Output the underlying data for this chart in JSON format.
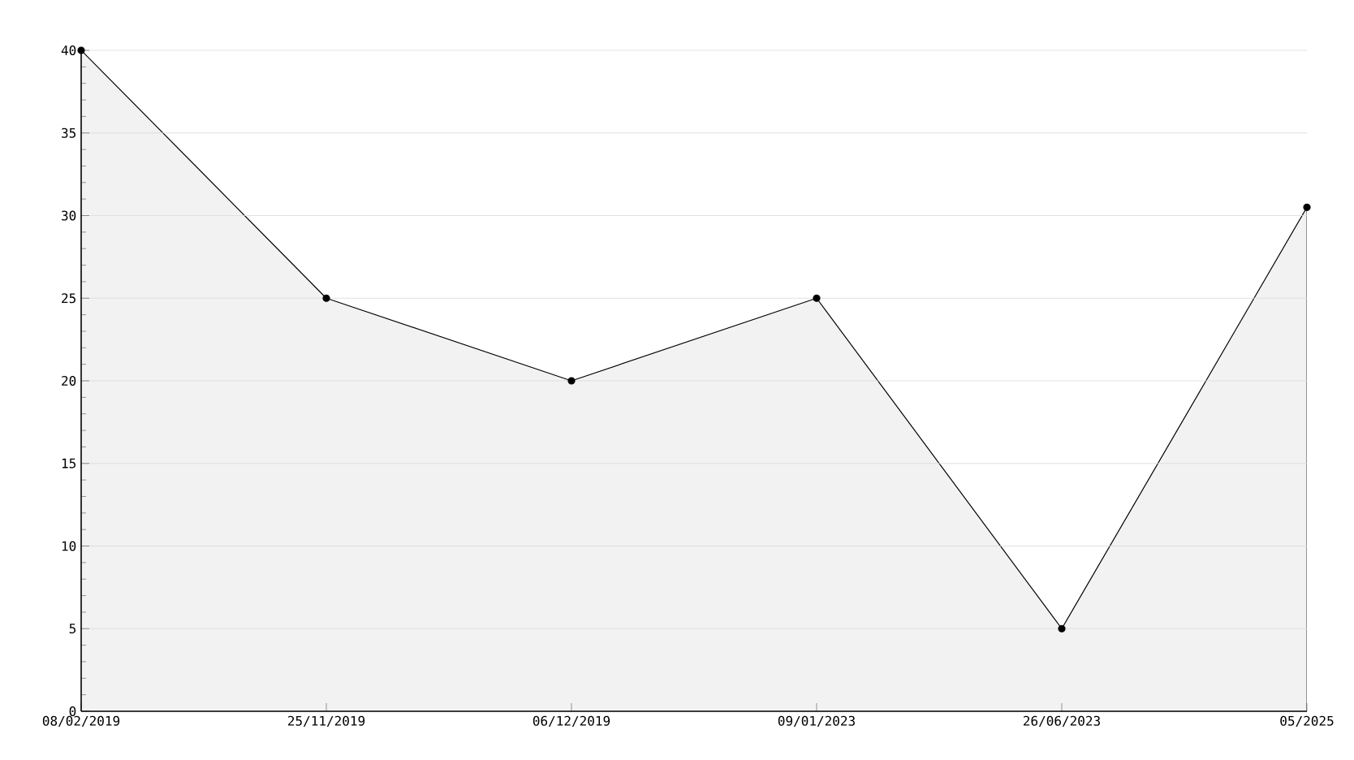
{
  "chart_data": {
    "type": "area",
    "categories": [
      "08/02/2019",
      "25/11/2019",
      "06/12/2019",
      "09/01/2023",
      "26/06/2023",
      "05/2025"
    ],
    "series": [
      {
        "color": "#000000",
        "values": [
          40,
          25,
          20,
          25,
          5,
          30.5
        ]
      }
    ],
    "ylim": [
      0,
      40
    ],
    "yticks": [
      0,
      5,
      10,
      15,
      20,
      25,
      30,
      35,
      40
    ],
    "grid": "y",
    "marker": "circle",
    "line_style": "solid"
  }
}
